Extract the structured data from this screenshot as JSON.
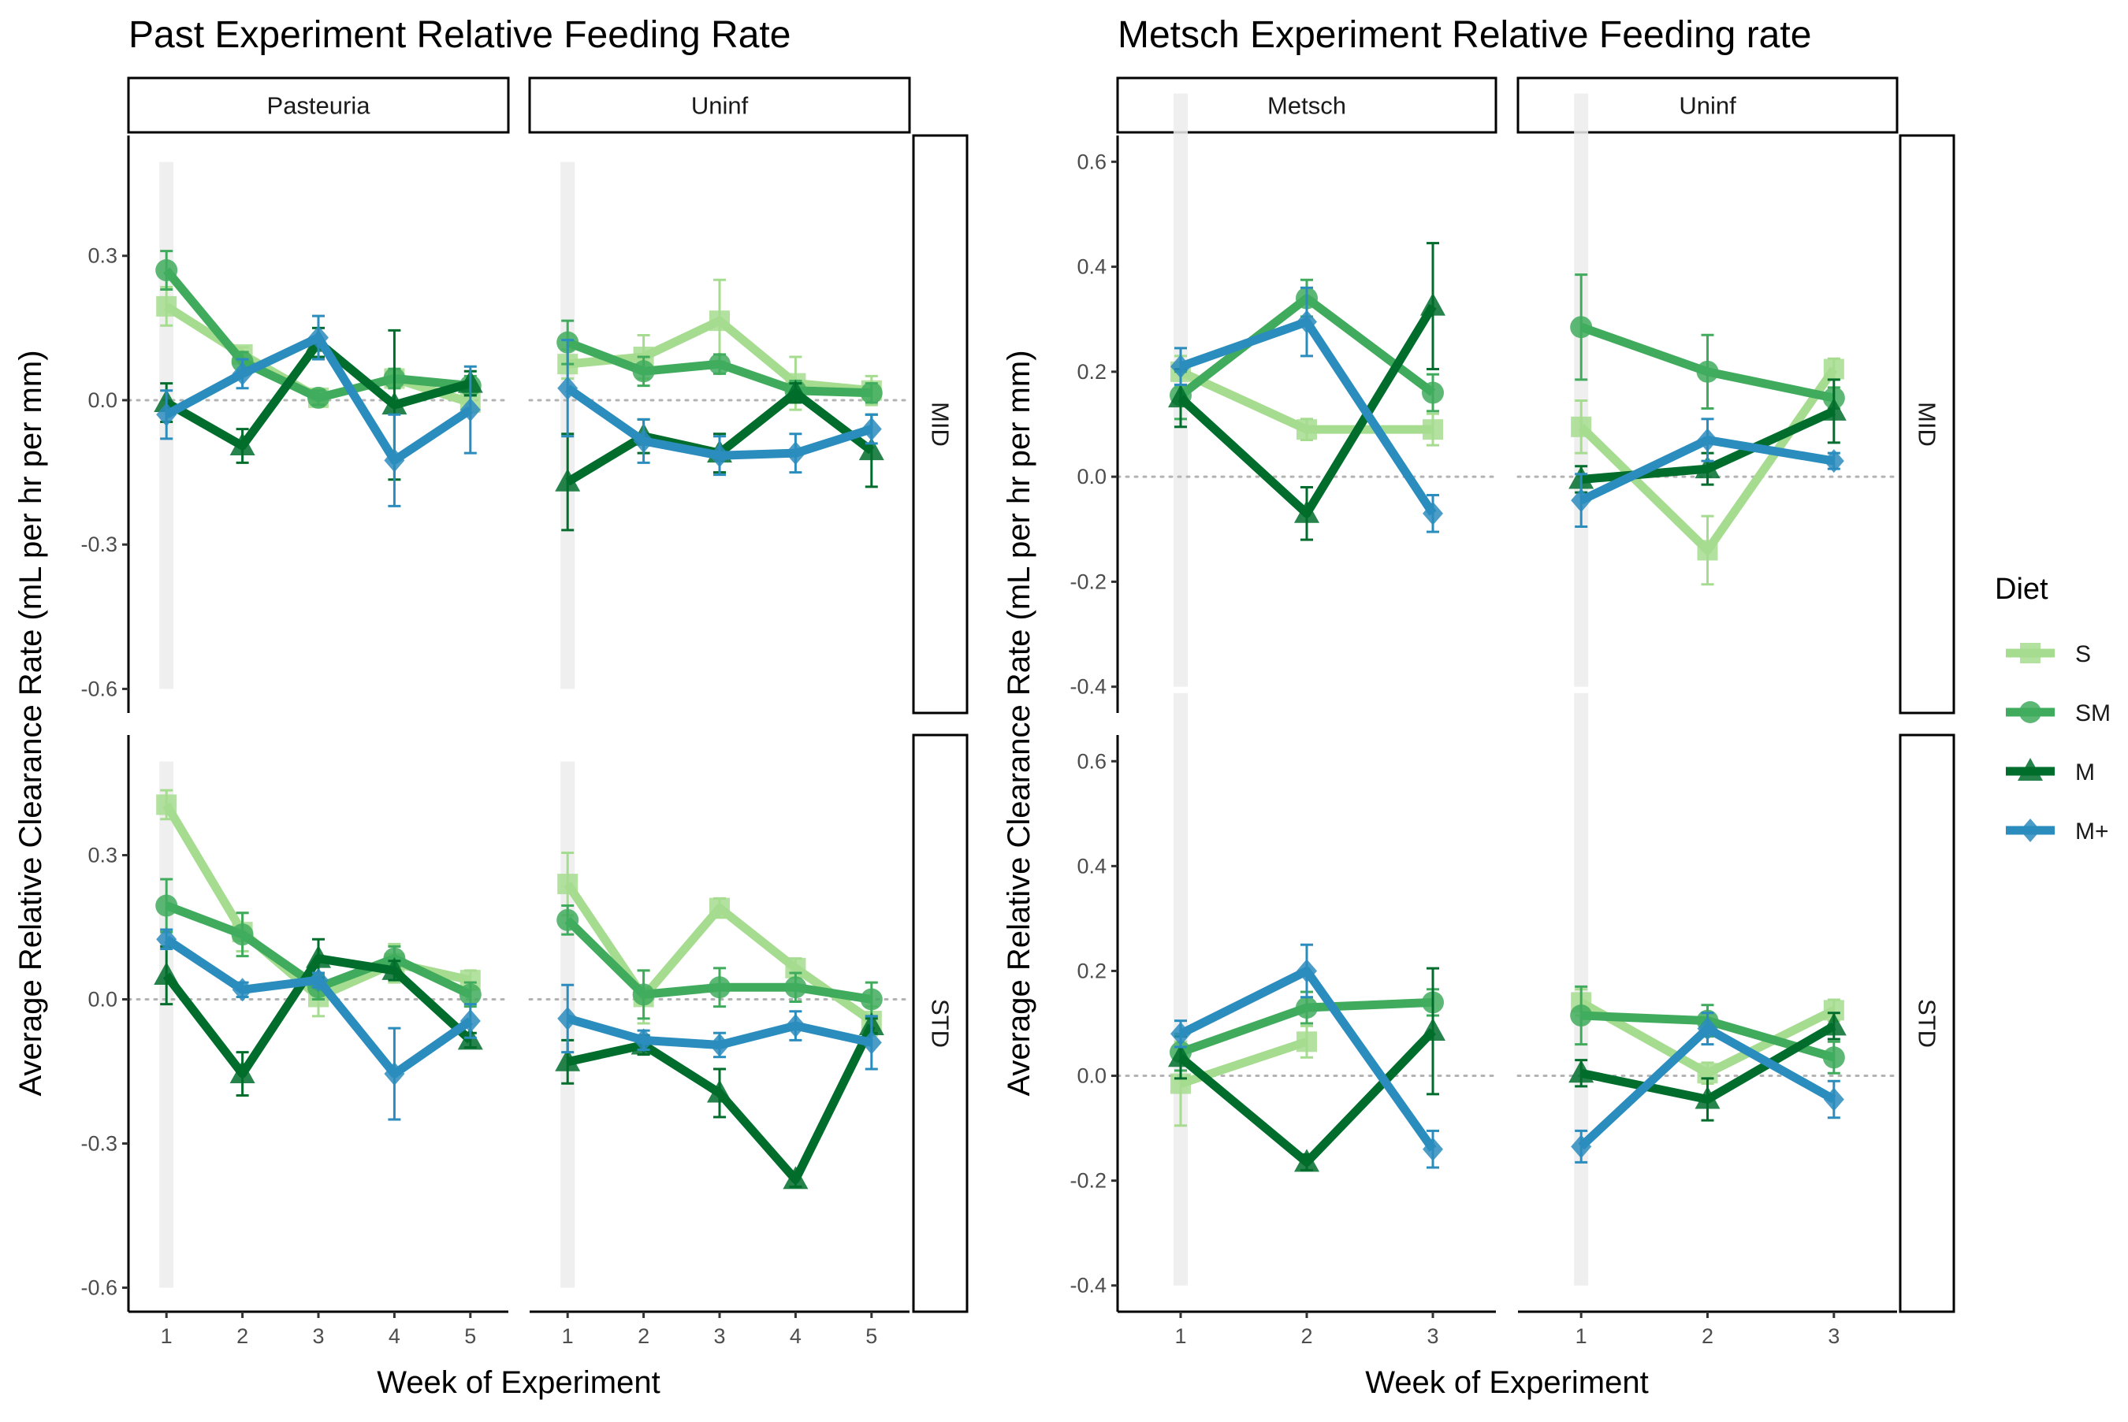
{
  "legend": {
    "title": "Diet",
    "items": [
      {
        "key": "S",
        "label": "S",
        "color": "#a6dc8f",
        "shape": "square"
      },
      {
        "key": "SM",
        "label": "SM",
        "color": "#41ab5d",
        "shape": "circle"
      },
      {
        "key": "M",
        "label": "M",
        "color": "#006d2c",
        "shape": "triangle"
      },
      {
        "key": "M+",
        "label": "M+",
        "color": "#2b8cbe",
        "shape": "diamond"
      }
    ]
  },
  "chart_data": [
    {
      "type": "line",
      "title": "Past Experiment Relative Feeding Rate",
      "xlabel": "Week of Experiment",
      "ylabel": "Average Relative Clearance Rate (mL per hr per mm)",
      "columns": [
        "Pasteuria",
        "Uninf"
      ],
      "rows": [
        "MID",
        "STD"
      ],
      "x": [
        1,
        2,
        3,
        4,
        5
      ],
      "xlim": [
        0.5,
        5.5
      ],
      "ylim": [
        -0.65,
        0.55
      ],
      "yticks": [
        -0.6,
        -0.3,
        0.0,
        0.3
      ],
      "ytick_labels": [
        "-0.6",
        "-0.3",
        "0.0",
        "0.3"
      ],
      "reference_line_y": 0,
      "highlight_x": 1,
      "panels": [
        {
          "column": "Pasteuria",
          "row": "MID",
          "series": [
            {
              "key": "S",
              "values": [
                0.195,
                0.095,
                0.005,
                0.045,
                -0.005
              ],
              "err": [
                0.04,
                0.015,
                0.015,
                0.02,
                0.02
              ]
            },
            {
              "key": "SM",
              "values": [
                0.27,
                0.08,
                0.005,
                0.045,
                0.03
              ],
              "err": [
                0.04,
                0.02,
                0.015,
                0.02,
                0.02
              ]
            },
            {
              "key": "M",
              "values": [
                -0.005,
                -0.095,
                0.12,
                -0.01,
                0.035
              ],
              "err": [
                0.04,
                0.035,
                0.03,
                0.155,
                0.025
              ]
            },
            {
              "key": "M+",
              "values": [
                -0.03,
                0.055,
                0.13,
                -0.125,
                -0.02
              ],
              "err": [
                0.05,
                0.03,
                0.045,
                0.095,
                0.09
              ]
            }
          ]
        },
        {
          "column": "Uninf",
          "row": "MID",
          "series": [
            {
              "key": "S",
              "values": [
                0.075,
                0.09,
                0.165,
                0.035,
                0.02
              ],
              "err": [
                0.03,
                0.045,
                0.085,
                0.055,
                0.03
              ]
            },
            {
              "key": "SM",
              "values": [
                0.12,
                0.06,
                0.075,
                0.02,
                0.015
              ],
              "err": [
                0.045,
                0.03,
                0.02,
                0.02,
                0.02
              ]
            },
            {
              "key": "M",
              "values": [
                -0.17,
                -0.075,
                -0.11,
                0.015,
                -0.105
              ],
              "err": [
                0.1,
                0.035,
                0.04,
                0.02,
                0.075
              ]
            },
            {
              "key": "M+",
              "values": [
                0.025,
                -0.085,
                -0.115,
                -0.11,
                -0.06
              ],
              "err": [
                0.1,
                0.045,
                0.04,
                0.04,
                0.03
              ]
            }
          ]
        },
        {
          "column": "Pasteuria",
          "row": "STD",
          "series": [
            {
              "key": "S",
              "values": [
                0.405,
                0.14,
                0.005,
                0.075,
                0.04
              ],
              "err": [
                0.03,
                0.04,
                0.04,
                0.04,
                0.02
              ]
            },
            {
              "key": "SM",
              "values": [
                0.195,
                0.135,
                0.025,
                0.085,
                0.01
              ],
              "err": [
                0.055,
                0.045,
                0.025,
                0.025,
                0.025
              ]
            },
            {
              "key": "M",
              "values": [
                0.05,
                -0.155,
                0.085,
                0.06,
                -0.085
              ],
              "err": [
                0.06,
                0.045,
                0.04,
                0.02,
                0.015
              ]
            },
            {
              "key": "M+",
              "values": [
                0.125,
                0.02,
                0.04,
                -0.155,
                -0.045
              ],
              "err": [
                0.02,
                0.015,
                0.015,
                0.095,
                0.035
              ]
            }
          ]
        },
        {
          "column": "Uninf",
          "row": "STD",
          "series": [
            {
              "key": "S",
              "values": [
                0.24,
                0.005,
                0.19,
                0.065,
                -0.045
              ],
              "err": [
                0.065,
                0.055,
                0.02,
                0.02,
                0.03
              ]
            },
            {
              "key": "SM",
              "values": [
                0.165,
                0.01,
                0.025,
                0.025,
                0.0
              ],
              "err": [
                0.03,
                0.05,
                0.04,
                0.03,
                0.035
              ]
            },
            {
              "key": "M",
              "values": [
                -0.13,
                -0.095,
                -0.195,
                -0.375,
                -0.055
              ],
              "err": [
                0.045,
                0.02,
                0.05,
                0.015,
                0.015
              ]
            },
            {
              "key": "M+",
              "values": [
                -0.04,
                -0.085,
                -0.095,
                -0.055,
                -0.09
              ],
              "err": [
                0.07,
                0.02,
                0.025,
                0.03,
                0.055
              ]
            }
          ]
        }
      ]
    },
    {
      "type": "line",
      "title": "Metsch Experiment Relative Feeding rate",
      "xlabel": "Week of Experiment",
      "ylabel": "Average Relative Clearance Rate (mL per hr per mm)",
      "columns": [
        "Metsch",
        "Uninf"
      ],
      "rows": [
        "MID",
        "STD"
      ],
      "x": [
        1,
        2,
        3
      ],
      "xlim": [
        0.5,
        3.5
      ],
      "ylim": [
        -0.45,
        0.65
      ],
      "yticks": [
        -0.4,
        -0.2,
        0.0,
        0.2,
        0.4,
        0.6
      ],
      "ytick_labels": [
        "-0.4",
        "-0.2",
        "0.0",
        "0.2",
        "0.4",
        "0.6"
      ],
      "reference_line_y": 0,
      "highlight_x": 1,
      "panels": [
        {
          "column": "Metsch",
          "row": "MID",
          "series": [
            {
              "key": "S",
              "values": [
                0.2,
                0.09,
                0.09
              ],
              "err": [
                0.03,
                0.02,
                0.03
              ]
            },
            {
              "key": "SM",
              "values": [
                0.155,
                0.34,
                0.16
              ],
              "err": [
                0.045,
                0.035,
                0.035
              ]
            },
            {
              "key": "M",
              "values": [
                0.15,
                -0.07,
                0.325
              ],
              "err": [
                0.055,
                0.05,
                0.12
              ]
            },
            {
              "key": "M+",
              "values": [
                0.21,
                0.295,
                -0.07
              ],
              "err": [
                0.035,
                0.065,
                0.035
              ]
            }
          ]
        },
        {
          "column": "Uninf",
          "row": "MID",
          "series": [
            {
              "key": "S",
              "values": [
                0.095,
                -0.14,
                0.205
              ],
              "err": [
                0.05,
                0.065,
                0.02
              ]
            },
            {
              "key": "SM",
              "values": [
                0.285,
                0.2,
                0.15
              ],
              "err": [
                0.1,
                0.07,
                0.02
              ]
            },
            {
              "key": "M",
              "values": [
                -0.005,
                0.015,
                0.125
              ],
              "err": [
                0.025,
                0.03,
                0.06
              ]
            },
            {
              "key": "M+",
              "values": [
                -0.045,
                0.07,
                0.03
              ],
              "err": [
                0.05,
                0.04,
                0.015
              ]
            }
          ]
        },
        {
          "column": "Metsch",
          "row": "STD",
          "series": [
            {
              "key": "S",
              "values": [
                -0.015,
                0.065,
                null
              ],
              "err": [
                0.08,
                0.03,
                null
              ]
            },
            {
              "key": "SM",
              "values": [
                0.045,
                0.13,
                0.14
              ],
              "err": [
                0.035,
                0.03,
                0.025
              ]
            },
            {
              "key": "M",
              "values": [
                0.035,
                -0.165,
                0.085
              ],
              "err": [
                0.04,
                0.015,
                0.12
              ]
            },
            {
              "key": "M+",
              "values": [
                0.08,
                0.2,
                -0.14
              ],
              "err": [
                0.025,
                0.05,
                0.035
              ]
            }
          ]
        },
        {
          "column": "Uninf",
          "row": "STD",
          "series": [
            {
              "key": "S",
              "values": [
                0.14,
                0.005,
                0.125
              ],
              "err": [
                0.025,
                0.02,
                0.02
              ]
            },
            {
              "key": "SM",
              "values": [
                0.115,
                0.105,
                0.035
              ],
              "err": [
                0.055,
                0.03,
                0.03
              ]
            },
            {
              "key": "M",
              "values": [
                0.005,
                -0.045,
                0.095
              ],
              "err": [
                0.025,
                0.04,
                0.025
              ]
            },
            {
              "key": "M+",
              "values": [
                -0.135,
                0.09,
                -0.045
              ],
              "err": [
                0.03,
                0.03,
                0.035
              ]
            }
          ]
        }
      ]
    }
  ]
}
